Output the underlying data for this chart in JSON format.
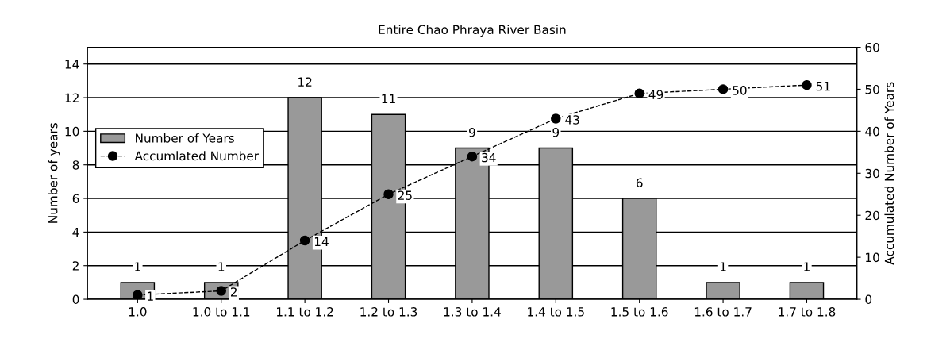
{
  "chart_data": {
    "type": "bar",
    "title": "Entire Chao Phraya River Basin",
    "ylabel": "Number of years",
    "y2label": "Accumulated Number of Years",
    "categories": [
      "1.0",
      "1.0 to 1.1",
      "1.1 to 1.2",
      "1.2 to 1.3",
      "1.3 to 1.4",
      "1.4 to 1.5",
      "1.5 to 1.6",
      "1.6 to 1.7",
      "1.7 to 1.8"
    ],
    "series": [
      {
        "name": "Number of Years",
        "color": "#999999",
        "values": [
          1,
          1,
          12,
          11,
          9,
          9,
          6,
          1,
          1
        ]
      },
      {
        "name": "Accumlated Number",
        "type": "line",
        "axis": "y2",
        "color": "#000000",
        "marker": "circle",
        "line_style": "dashed",
        "values": [
          1,
          2,
          14,
          25,
          34,
          43,
          49,
          50,
          51
        ]
      }
    ],
    "ylim": [
      0,
      15
    ],
    "yticks": [
      0,
      2,
      4,
      6,
      8,
      10,
      12,
      14
    ],
    "y2lim": [
      0,
      60
    ],
    "y2ticks": [
      0,
      10,
      20,
      30,
      40,
      50,
      60
    ],
    "grid": "y",
    "legend": "left",
    "data_labels": true
  }
}
